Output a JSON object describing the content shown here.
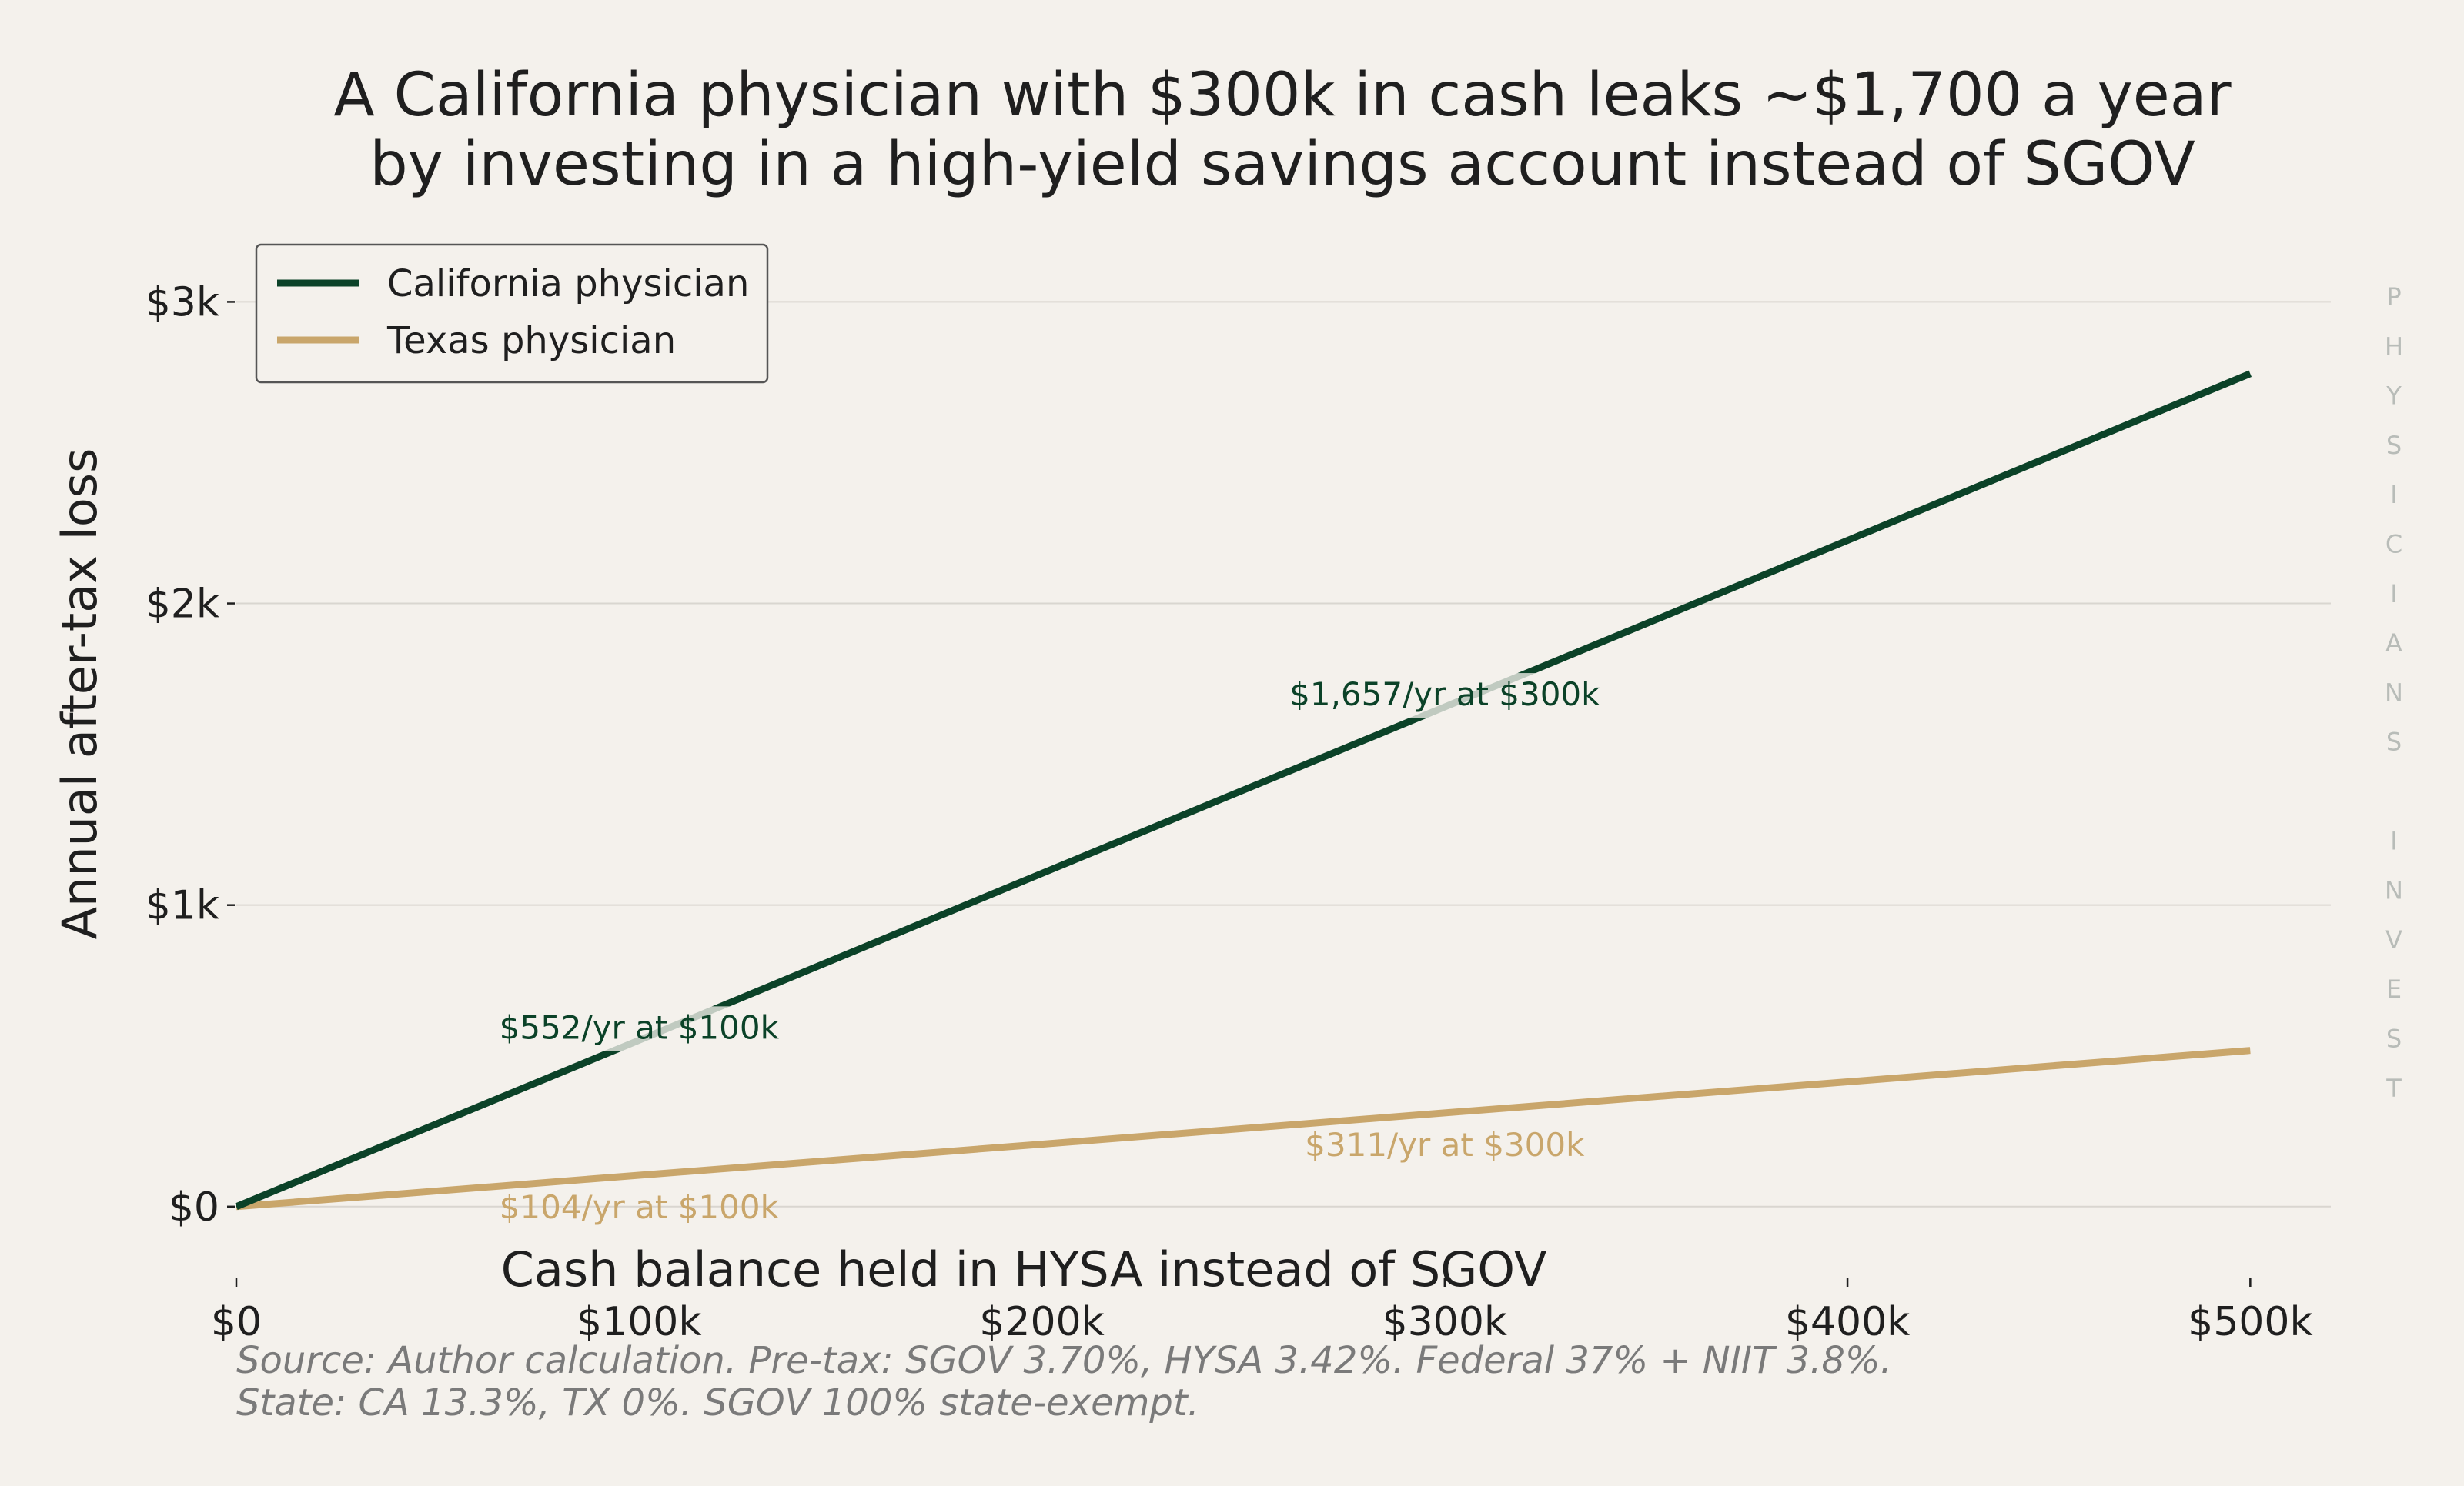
{
  "chart_data": {
    "type": "line",
    "title": [
      "A California physician with $300k in cash leaks ~$1,700 a year",
      "by investing in a high-yield savings account instead of SGOV"
    ],
    "xlabel": "Cash balance held in HYSA instead of SGOV",
    "ylabel": "Annual after-tax loss",
    "xlim": [
      0,
      520000
    ],
    "ylim": [
      -230,
      3200
    ],
    "x_ticks": [
      0,
      100000,
      200000,
      300000,
      400000,
      500000
    ],
    "x_tick_labels": [
      "$0",
      "$100k",
      "$200k",
      "$300k",
      "$400k",
      "$500k"
    ],
    "y_ticks": [
      0,
      1000,
      2000,
      3000
    ],
    "y_tick_labels": [
      "$0",
      "$1k",
      "$2k",
      "$3k"
    ],
    "grid": "horizontal",
    "legend_position": "top-left",
    "series": [
      {
        "name": "California physician",
        "color": "#0b4228",
        "x": [
          0,
          100000,
          200000,
          300000,
          400000,
          500000
        ],
        "y": [
          0,
          552,
          1105,
          1657,
          2209,
          2762
        ]
      },
      {
        "name": "Texas physician",
        "color": "#c9a66b",
        "x": [
          0,
          100000,
          200000,
          300000,
          400000,
          500000
        ],
        "y": [
          0,
          104,
          207,
          311,
          414,
          518
        ]
      }
    ],
    "annotations": [
      {
        "text": "$552/yr at $100k",
        "series": 0,
        "x": 100000,
        "y": 552
      },
      {
        "text": "$1,657/yr at $300k",
        "series": 0,
        "x": 300000,
        "y": 1657
      },
      {
        "text": "$104/yr at $100k",
        "series": 1,
        "x": 100000,
        "y": 104
      },
      {
        "text": "$311/yr at $300k",
        "series": 1,
        "x": 300000,
        "y": 311
      }
    ],
    "source": [
      "Source: Author calculation. Pre-tax: SGOV 3.70%, HYSA 3.42%. Federal 37% + NIIT 3.8%.",
      "State: CA 13.3%, TX 0%. SGOV 100% state-exempt."
    ],
    "watermark_letters": [
      "P",
      "H",
      "Y",
      "S",
      "I",
      "C",
      "I",
      "A",
      "N",
      "S",
      "",
      "I",
      "N",
      "V",
      "E",
      "S",
      "T"
    ]
  },
  "colors": {
    "background": "#f4f1ec",
    "grid": "#d9d6d0",
    "axis": "#1f1f1f"
  }
}
